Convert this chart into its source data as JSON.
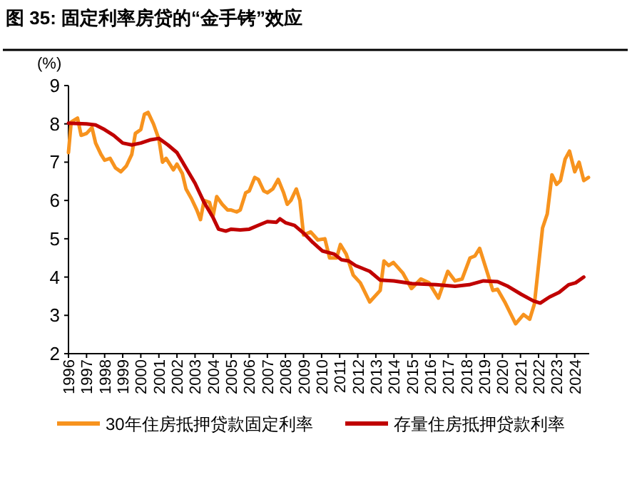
{
  "chart_data": {
    "type": "line",
    "title": "图 35: 固定利率房贷的“金手铐”效应",
    "ylabel": "(%)",
    "xlim": [
      1996,
      2024.8
    ],
    "xticks": [
      1996,
      1997,
      1998,
      1999,
      2000,
      2001,
      2002,
      2003,
      2004,
      2005,
      2006,
      2007,
      2008,
      2009,
      2010,
      2011,
      2012,
      2013,
      2014,
      2015,
      2016,
      2017,
      2018,
      2019,
      2020,
      2021,
      2022,
      2023,
      2024
    ],
    "ylim": [
      2,
      9
    ],
    "yticks": [
      2,
      3,
      4,
      5,
      6,
      7,
      8,
      9
    ],
    "legend": "bottom",
    "grid": false,
    "marker": "none",
    "line_style": "solid",
    "series": [
      {
        "name": "30年住房抵押贷款固定利率",
        "color": "#f7931e",
        "x": [
          1996.0,
          1996.15,
          1996.5,
          1996.7,
          1997.0,
          1997.3,
          1997.5,
          1997.8,
          1998.0,
          1998.3,
          1998.6,
          1998.9,
          1999.2,
          1999.5,
          1999.7,
          2000.0,
          2000.2,
          2000.4,
          2000.7,
          2001.0,
          2001.2,
          2001.4,
          2001.8,
          2002.0,
          2002.3,
          2002.5,
          2002.8,
          2003.1,
          2003.3,
          2003.5,
          2003.8,
          2004.0,
          2004.2,
          2004.5,
          2004.8,
          2005.0,
          2005.3,
          2005.5,
          2005.8,
          2006.0,
          2006.3,
          2006.5,
          2006.8,
          2007.0,
          2007.3,
          2007.6,
          2007.9,
          2008.1,
          2008.3,
          2008.6,
          2008.8,
          2009.0,
          2009.39,
          2009.79,
          2010.18,
          2010.44,
          2010.83,
          2011.04,
          2011.36,
          2011.75,
          2012.14,
          2012.66,
          2013.24,
          2013.45,
          2013.71,
          2013.97,
          2014.5,
          2014.97,
          2015.49,
          2015.94,
          2016.46,
          2016.98,
          2017.38,
          2017.77,
          2018.21,
          2018.48,
          2018.74,
          2019.21,
          2019.47,
          2019.73,
          2020.13,
          2020.73,
          2021.17,
          2021.51,
          2021.77,
          2022.22,
          2022.48,
          2022.74,
          2023.0,
          2023.21,
          2023.47,
          2023.71,
          2024.0,
          2024.24,
          2024.5,
          2024.76
        ],
        "values": [
          7.25,
          8.05,
          8.15,
          7.7,
          7.75,
          7.9,
          7.5,
          7.2,
          7.05,
          7.1,
          6.85,
          6.75,
          6.9,
          7.2,
          7.75,
          7.85,
          8.25,
          8.3,
          8.0,
          7.6,
          7.0,
          7.1,
          6.8,
          6.95,
          6.7,
          6.3,
          6.05,
          5.75,
          5.5,
          6.0,
          5.95,
          5.6,
          6.1,
          5.9,
          5.75,
          5.75,
          5.7,
          5.75,
          6.2,
          6.25,
          6.6,
          6.55,
          6.25,
          6.2,
          6.3,
          6.55,
          6.2,
          5.9,
          6.0,
          6.3,
          6.0,
          5.1,
          5.18,
          4.97,
          5.0,
          4.5,
          4.5,
          4.85,
          4.6,
          4.05,
          3.85,
          3.35,
          3.65,
          4.42,
          4.3,
          4.38,
          4.1,
          3.7,
          3.95,
          3.85,
          3.45,
          4.15,
          3.9,
          3.95,
          4.5,
          4.55,
          4.75,
          4.05,
          3.65,
          3.68,
          3.35,
          2.78,
          3.02,
          2.9,
          3.3,
          5.28,
          5.65,
          6.67,
          6.42,
          6.52,
          7.08,
          7.29,
          6.75,
          7.0,
          6.52,
          6.6
        ]
      },
      {
        "name": "存量住房抵押贷款利率",
        "color": "#c00000",
        "x": [
          1996.0,
          1997.0,
          1997.5,
          1998.0,
          1998.5,
          1999.0,
          1999.5,
          2000.0,
          2000.5,
          2001.0,
          2001.5,
          2002.0,
          2002.5,
          2003.0,
          2003.5,
          2004.0,
          2004.3,
          2004.7,
          2005.0,
          2005.5,
          2006.0,
          2006.5,
          2007.0,
          2007.5,
          2007.7,
          2008.0,
          2008.5,
          2009.0,
          2009.52,
          2010.05,
          2010.7,
          2011.1,
          2011.5,
          2011.88,
          2012.66,
          2013.24,
          2014.0,
          2015.0,
          2016.33,
          2017.38,
          2018.16,
          2018.95,
          2019.73,
          2020.26,
          2021.04,
          2021.7,
          2022.09,
          2022.61,
          2023.14,
          2023.66,
          2024.05,
          2024.5
        ],
        "values": [
          8.02,
          8.0,
          7.97,
          7.85,
          7.7,
          7.5,
          7.45,
          7.5,
          7.58,
          7.62,
          7.45,
          7.25,
          6.85,
          6.45,
          5.95,
          5.55,
          5.25,
          5.2,
          5.25,
          5.23,
          5.25,
          5.35,
          5.45,
          5.43,
          5.52,
          5.42,
          5.35,
          5.15,
          4.9,
          4.68,
          4.6,
          4.45,
          4.42,
          4.3,
          4.15,
          3.92,
          3.9,
          3.83,
          3.8,
          3.76,
          3.8,
          3.9,
          3.88,
          3.77,
          3.55,
          3.38,
          3.32,
          3.48,
          3.6,
          3.8,
          3.85,
          4.0
        ]
      }
    ]
  }
}
